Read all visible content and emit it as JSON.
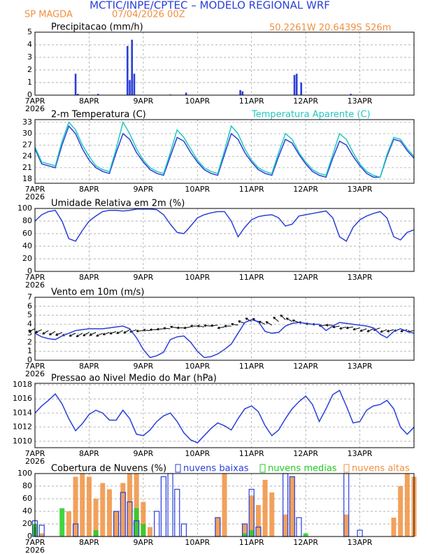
{
  "header": {
    "title": "MCTIC/INPE/CPTEC – MODELO REGIONAL WRF",
    "station": "SP MAGDA",
    "run": "07/04/2026 00Z",
    "location": "50.2261W 20.6439S 526m"
  },
  "chart_data": [
    {
      "type": "bar",
      "title": "Precipitacao (mm/h)",
      "color": "#2a3fd8",
      "grid": true,
      "x": [
        18,
        19,
        28,
        41,
        42,
        43,
        44,
        60,
        67,
        91,
        92,
        115,
        116,
        118,
        140
      ],
      "values": [
        1.7,
        0.1,
        0.1,
        3.9,
        1.2,
        4.4,
        1.7,
        0.05,
        0.2,
        0.4,
        0.3,
        1.6,
        1.7,
        1.0,
        0.1
      ],
      "xlim": [
        0,
        168
      ],
      "xticks": [
        {
          "value": 0,
          "label": "7APR"
        },
        {
          "value": 24,
          "label": "8APR"
        },
        {
          "value": 48,
          "label": "9APR"
        },
        {
          "value": 72,
          "label": "10APR"
        },
        {
          "value": 96,
          "label": "11APR"
        },
        {
          "value": 120,
          "label": "12APR"
        },
        {
          "value": 144,
          "label": "13APR"
        }
      ],
      "year": "2026",
      "ylim": [
        0,
        5
      ],
      "yticks": [
        0,
        1,
        2,
        3,
        4,
        5
      ]
    },
    {
      "type": "line",
      "title": "2-m Temperatura (C)",
      "grid": true,
      "x": [
        0,
        3,
        6,
        9,
        12,
        15,
        18,
        21,
        24,
        27,
        30,
        33,
        36,
        39,
        42,
        45,
        48,
        51,
        54,
        57,
        60,
        63,
        66,
        69,
        72,
        75,
        78,
        81,
        84,
        87,
        90,
        93,
        96,
        99,
        102,
        105,
        108,
        111,
        114,
        117,
        120,
        123,
        126,
        129,
        132,
        135,
        138,
        141,
        144,
        147,
        150,
        153,
        156,
        159,
        162,
        165,
        168
      ],
      "series": [
        {
          "color": "#2a3fd8",
          "values": [
            26,
            22,
            21.5,
            21,
            27,
            32,
            30,
            26,
            23,
            21,
            20,
            19.5,
            25,
            30,
            28.5,
            25,
            22.5,
            20.5,
            19.5,
            19,
            24,
            29,
            28,
            25,
            22.5,
            20.5,
            19.5,
            19,
            24.5,
            30,
            28.5,
            25,
            22.5,
            20.5,
            19.5,
            19,
            24,
            28.5,
            27.5,
            24.5,
            22,
            20,
            19,
            18.5,
            23.5,
            28,
            27,
            24,
            21.5,
            19.5,
            18.5,
            18.5,
            24,
            28.5,
            28,
            25.5,
            23.5
          ]
        },
        {
          "name": "Temperatura Aparente (C)",
          "color": "#22c8c0",
          "values": [
            26.5,
            22.5,
            22,
            21.5,
            28,
            33,
            31,
            27,
            24,
            21.5,
            20.5,
            20,
            26,
            33,
            30,
            26,
            23,
            21,
            20,
            19.5,
            25,
            31,
            29,
            26,
            23,
            21,
            20,
            19.5,
            25.5,
            32,
            30,
            26,
            23,
            21,
            20,
            19.5,
            25,
            30,
            28.5,
            25,
            22.5,
            20.5,
            19.5,
            19,
            24.5,
            30,
            28.5,
            25,
            22,
            20,
            19,
            18.5,
            24.5,
            29,
            28.5,
            26,
            24
          ]
        }
      ],
      "xlim": [
        0,
        168
      ],
      "xticks": [
        {
          "value": 0,
          "label": "7APR"
        },
        {
          "value": 24,
          "label": "8APR"
        },
        {
          "value": 48,
          "label": "9APR"
        },
        {
          "value": 72,
          "label": "10APR"
        },
        {
          "value": 96,
          "label": "11APR"
        },
        {
          "value": 120,
          "label": "12APR"
        },
        {
          "value": 144,
          "label": "13APR"
        }
      ],
      "year": "2026",
      "ylim": [
        16.9,
        33.7
      ],
      "yticks": [
        18,
        21,
        24,
        27,
        30,
        33
      ]
    },
    {
      "type": "line",
      "title": "Umidade Relativa em 2m (%)",
      "grid": true,
      "x": [
        0,
        3,
        6,
        9,
        12,
        15,
        18,
        21,
        24,
        27,
        30,
        33,
        36,
        39,
        42,
        45,
        48,
        51,
        54,
        57,
        60,
        63,
        66,
        69,
        72,
        75,
        78,
        81,
        84,
        87,
        90,
        93,
        96,
        99,
        102,
        105,
        108,
        111,
        114,
        117,
        120,
        123,
        126,
        129,
        132,
        135,
        138,
        141,
        144,
        147,
        150,
        153,
        156,
        159,
        162,
        165,
        168
      ],
      "series": [
        {
          "color": "#2a3fd8",
          "values": [
            80,
            90,
            95,
            97,
            80,
            52,
            48,
            65,
            80,
            88,
            95,
            97,
            97,
            96,
            97,
            99,
            99,
            99,
            98,
            90,
            75,
            62,
            60,
            72,
            85,
            90,
            93,
            95,
            95,
            80,
            55,
            70,
            82,
            87,
            89,
            90,
            85,
            72,
            75,
            88,
            90,
            92,
            94,
            96,
            85,
            55,
            48,
            70,
            82,
            88,
            92,
            95,
            85,
            55,
            50,
            62,
            66
          ]
        }
      ],
      "xlim": [
        0,
        168
      ],
      "xticks": [
        {
          "value": 0,
          "label": "7APR"
        },
        {
          "value": 24,
          "label": "8APR"
        },
        {
          "value": 48,
          "label": "9APR"
        },
        {
          "value": 72,
          "label": "10APR"
        },
        {
          "value": 96,
          "label": "11APR"
        },
        {
          "value": 120,
          "label": "12APR"
        },
        {
          "value": 144,
          "label": "13APR"
        }
      ],
      "year": "2026",
      "ylim": [
        0,
        100
      ],
      "yticks": [
        0,
        20,
        40,
        60,
        80,
        100
      ]
    },
    {
      "type": "line",
      "title": "Vento em 10m (m/s)",
      "grid": true,
      "x": [
        0,
        3,
        6,
        9,
        12,
        15,
        18,
        21,
        24,
        27,
        30,
        33,
        36,
        39,
        42,
        45,
        48,
        51,
        54,
        57,
        60,
        63,
        66,
        69,
        72,
        75,
        78,
        81,
        84,
        87,
        90,
        93,
        96,
        99,
        102,
        105,
        108,
        111,
        114,
        117,
        120,
        123,
        126,
        129,
        132,
        135,
        138,
        141,
        144,
        147,
        150,
        153,
        156,
        159,
        162,
        165,
        168
      ],
      "series": [
        {
          "color": "#2a3fd8",
          "values": [
            3.0,
            2.6,
            2.4,
            2.3,
            2.7,
            3.0,
            3.3,
            3.4,
            3.5,
            3.5,
            3.5,
            3.6,
            3.7,
            3.8,
            3.5,
            2.5,
            1.2,
            0.3,
            0.5,
            0.9,
            2.3,
            2.6,
            2.7,
            2.0,
            1.0,
            0.3,
            0.4,
            0.7,
            1.2,
            1.8,
            3.0,
            4.2,
            4.5,
            4.3,
            3.2,
            3.0,
            3.1,
            3.8,
            4.1,
            4.2,
            4.1,
            4.0,
            4.0,
            3.3,
            3.8,
            4.2,
            4.1,
            4.0,
            3.9,
            3.8,
            3.6,
            2.9,
            2.5,
            3.2,
            3.5,
            3.2,
            3.0
          ]
        }
      ],
      "arrows": {
        "color": "#000000",
        "values": [
          3.5,
          3.4,
          3.3,
          3.2,
          3.1,
          3.0,
          3.0,
          3.0,
          3.1,
          3.1,
          3.0,
          3.1,
          3.2,
          3.3,
          3.4,
          3.4,
          3.3,
          3.3,
          3.4,
          3.5,
          3.5,
          3.6,
          3.6,
          3.7,
          3.8,
          3.7,
          3.8,
          3.9,
          3.7,
          3.8,
          3.9,
          4.1,
          4.3,
          4.2,
          4.0,
          3.9,
          4.3,
          4.5,
          4.3,
          4.2,
          4.1,
          4.0,
          4.0,
          3.9,
          3.9,
          3.8,
          3.7,
          3.7,
          3.6,
          3.5,
          3.5,
          3.6,
          3.4,
          3.4,
          3.5,
          3.4,
          3.3
        ],
        "angles": [
          205,
          205,
          210,
          210,
          205,
          200,
          205,
          210,
          210,
          205,
          205,
          200,
          200,
          205,
          210,
          200,
          185,
          175,
          180,
          185,
          175,
          170,
          180,
          190,
          180,
          170,
          175,
          185,
          190,
          180,
          170,
          160,
          150,
          145,
          155,
          150,
          140,
          135,
          150,
          160,
          170,
          175,
          180,
          185,
          180,
          190,
          195,
          190,
          195,
          200,
          205,
          200,
          200,
          195,
          200,
          195,
          190
        ]
      },
      "xlim": [
        0,
        168
      ],
      "xticks": [
        {
          "value": 0,
          "label": "7APR"
        },
        {
          "value": 24,
          "label": "8APR"
        },
        {
          "value": 48,
          "label": "9APR"
        },
        {
          "value": 72,
          "label": "10APR"
        },
        {
          "value": 96,
          "label": "11APR"
        },
        {
          "value": 120,
          "label": "12APR"
        },
        {
          "value": 144,
          "label": "13APR"
        }
      ],
      "year": "2026",
      "ylim": [
        0,
        7
      ],
      "yticks": [
        0,
        1,
        2,
        3,
        4,
        5,
        6,
        7
      ]
    },
    {
      "type": "line",
      "title": "Pressao ao Nivel Medio do Mar (hPa)",
      "grid": true,
      "x": [
        0,
        3,
        6,
        9,
        12,
        15,
        18,
        21,
        24,
        27,
        30,
        33,
        36,
        39,
        42,
        45,
        48,
        51,
        54,
        57,
        60,
        63,
        66,
        69,
        72,
        75,
        78,
        81,
        84,
        87,
        90,
        93,
        96,
        99,
        102,
        105,
        108,
        111,
        114,
        117,
        120,
        123,
        126,
        129,
        132,
        135,
        138,
        141,
        144,
        147,
        150,
        153,
        156,
        159,
        162,
        165,
        168
      ],
      "series": [
        {
          "color": "#2a3fd8",
          "values": [
            1014.0,
            1015.0,
            1015.8,
            1016.7,
            1015.3,
            1013.2,
            1011.5,
            1012.5,
            1013.8,
            1014.4,
            1014.0,
            1013.0,
            1013.0,
            1014.4,
            1013.2,
            1011.0,
            1010.8,
            1011.6,
            1012.8,
            1013.6,
            1014.0,
            1012.8,
            1011.2,
            1010.2,
            1009.8,
            1010.8,
            1011.8,
            1012.6,
            1012.2,
            1011.6,
            1013.2,
            1014.6,
            1015.0,
            1014.2,
            1012.2,
            1010.8,
            1011.6,
            1013.2,
            1014.6,
            1015.6,
            1016.4,
            1015.2,
            1012.8,
            1014.6,
            1016.6,
            1017.2,
            1015.0,
            1012.6,
            1012.8,
            1014.4,
            1015.0,
            1015.2,
            1015.8,
            1014.6,
            1012.0,
            1011.0,
            1012.0
          ]
        }
      ],
      "xlim": [
        0,
        168
      ],
      "xticks": [
        {
          "value": 0,
          "label": "7APR"
        },
        {
          "value": 24,
          "label": "8APR"
        },
        {
          "value": 48,
          "label": "9APR"
        },
        {
          "value": 72,
          "label": "10APR"
        },
        {
          "value": 96,
          "label": "11APR"
        },
        {
          "value": 120,
          "label": "12APR"
        },
        {
          "value": 144,
          "label": "13APR"
        }
      ],
      "year": "2026",
      "ylim": [
        1009.1,
        1018.2
      ],
      "yticks": [
        1010,
        1012,
        1014,
        1016,
        1018
      ]
    },
    {
      "type": "bar",
      "title": "Cobertura de Nuvens (%)",
      "grid": true,
      "x": [
        0,
        3,
        6,
        9,
        12,
        15,
        18,
        21,
        24,
        27,
        30,
        33,
        36,
        39,
        42,
        45,
        48,
        51,
        54,
        57,
        60,
        63,
        66,
        69,
        72,
        75,
        78,
        81,
        84,
        87,
        90,
        93,
        96,
        99,
        102,
        105,
        108,
        111,
        114,
        117,
        120,
        123,
        126,
        129,
        132,
        135,
        138,
        141,
        144,
        147,
        150,
        153,
        156,
        159,
        162,
        165,
        168
      ],
      "series": [
        {
          "name": "nuvens baixas",
          "color": "#2a3fd8",
          "style": "outline",
          "values": [
            25,
            18,
            0,
            0,
            0,
            0,
            20,
            0,
            0,
            0,
            0,
            0,
            40,
            70,
            55,
            25,
            0,
            0,
            40,
            95,
            100,
            75,
            20,
            0,
            0,
            0,
            0,
            30,
            0,
            0,
            0,
            20,
            75,
            15,
            0,
            0,
            0,
            100,
            95,
            30,
            0,
            0,
            0,
            0,
            0,
            0,
            100,
            0,
            10,
            0,
            0,
            0,
            0,
            0,
            0,
            0,
            0
          ]
        },
        {
          "name": "nuvens medias",
          "color": "#22cc22",
          "style": "filled",
          "values": [
            20,
            0,
            0,
            0,
            45,
            0,
            0,
            0,
            0,
            10,
            0,
            0,
            0,
            0,
            0,
            45,
            20,
            0,
            0,
            0,
            0,
            0,
            0,
            0,
            0,
            0,
            0,
            0,
            0,
            0,
            0,
            5,
            10,
            0,
            0,
            0,
            0,
            0,
            0,
            0,
            5,
            0,
            0,
            0,
            0,
            0,
            0,
            0,
            0,
            0,
            0,
            0,
            0,
            0,
            0,
            0,
            0
          ]
        },
        {
          "name": "nuvens altas",
          "color": "#f09040",
          "style": "filled",
          "values": [
            15,
            5,
            0,
            0,
            0,
            40,
            95,
            100,
            95,
            60,
            85,
            75,
            40,
            85,
            100,
            100,
            55,
            15,
            0,
            0,
            0,
            0,
            0,
            0,
            0,
            0,
            0,
            30,
            100,
            0,
            0,
            20,
            65,
            50,
            90,
            70,
            0,
            35,
            95,
            0,
            0,
            0,
            0,
            0,
            0,
            0,
            35,
            0,
            0,
            0,
            0,
            0,
            0,
            30,
            80,
            100,
            95
          ]
        }
      ],
      "xlim": [
        0,
        168
      ],
      "xticks": [
        {
          "value": 0,
          "label": "7APR"
        },
        {
          "value": 24,
          "label": "8APR"
        },
        {
          "value": 48,
          "label": "9APR"
        },
        {
          "value": 72,
          "label": "10APR"
        },
        {
          "value": 96,
          "label": "11APR"
        },
        {
          "value": 120,
          "label": "12APR"
        },
        {
          "value": 144,
          "label": "13APR"
        }
      ],
      "year": "2026",
      "ylim": [
        0,
        100
      ],
      "yticks": [
        0,
        20,
        40,
        60,
        80,
        100
      ]
    }
  ]
}
